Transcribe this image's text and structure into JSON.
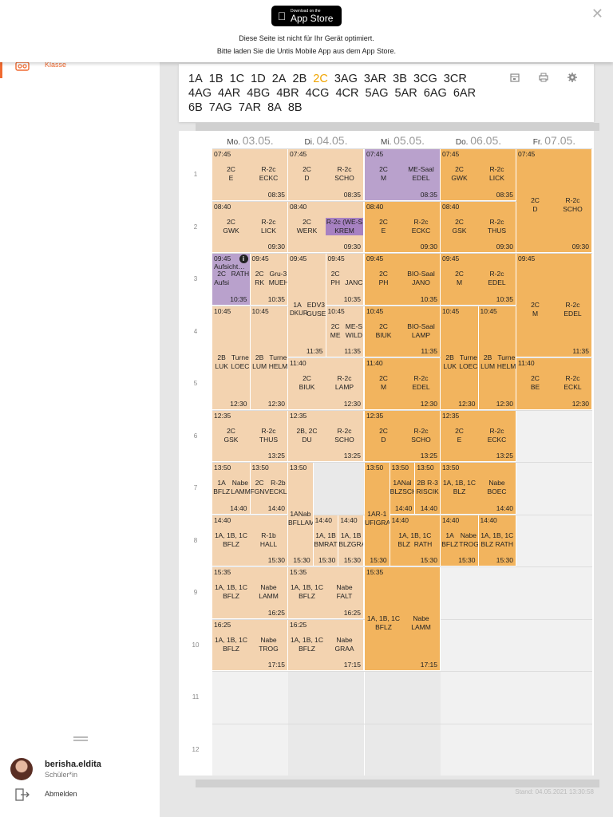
{
  "banner": {
    "appstore_small": "Download on the",
    "appstore_big": "App Store",
    "line1": "Diese Seite ist nicht für Ihr Gerät optimiert.",
    "line2": "Bitte laden Sie die Untis Mobile App aus dem App Store.",
    "close": "✕"
  },
  "sidebar": {
    "nav_label": "Klasse",
    "user": "berisha.eldita",
    "role": "Schüler*in",
    "logout": "Abmelden"
  },
  "classes": {
    "items": [
      "1A",
      "1B",
      "1C",
      "1D",
      "2A",
      "2B",
      "2C",
      "3AG",
      "3AR",
      "3B",
      "3CG",
      "3CR",
      "4AG",
      "4AR",
      "4BG",
      "4BR",
      "4CG",
      "4CR",
      "5AG",
      "5AR",
      "6AG",
      "6AR",
      "6B",
      "7AG",
      "7AR",
      "8A",
      "8B"
    ],
    "active": "2C"
  },
  "timetable": {
    "days": [
      {
        "name": "Mo.",
        "date": "03.05."
      },
      {
        "name": "Di.",
        "date": "04.05."
      },
      {
        "name": "Mi.",
        "date": "05.05."
      },
      {
        "name": "Do.",
        "date": "06.05."
      },
      {
        "name": "Fr.",
        "date": "07.05."
      }
    ],
    "periods": [
      "1",
      "2",
      "3",
      "4",
      "5",
      "6",
      "7",
      "8",
      "9",
      "10",
      "11",
      "12"
    ],
    "stand": "Stand: 04.05.2021 13:30:58",
    "lessons": [
      {
        "day": 0,
        "p": 0,
        "span": 1,
        "sub": 0,
        "of": 1,
        "c": "light",
        "st": "07:45",
        "a": "2C\nE",
        "b": "R-2c\nECKC",
        "et": "08:35"
      },
      {
        "day": 0,
        "p": 1,
        "span": 1,
        "sub": 0,
        "of": 1,
        "c": "light",
        "st": "08:40",
        "a": "2C\nGWK",
        "b": "R-2c\nLICK",
        "et": "09:30"
      },
      {
        "day": 0,
        "p": 2,
        "span": 1,
        "sub": 0,
        "of": 2,
        "c": "purple",
        "st": "09:45\nAufsicht…",
        "a": "2C\nAufsi",
        "b": "RATH",
        "et": "10:35",
        "info": true
      },
      {
        "day": 0,
        "p": 2,
        "span": 1,
        "sub": 1,
        "of": 2,
        "c": "light",
        "st": "09:45",
        "a": "2C\nRK",
        "b": "Gru-3\nMUEH",
        "et": "10:35"
      },
      {
        "day": 0,
        "p": 3,
        "span": 2,
        "sub": 0,
        "of": 2,
        "c": "light",
        "st": "10:45",
        "a": "2B\nLUK",
        "b": "Turne\nLOEC",
        "et": "12:30"
      },
      {
        "day": 0,
        "p": 3,
        "span": 2,
        "sub": 1,
        "of": 2,
        "c": "light",
        "st": "10:45",
        "a": "2B\nLUM",
        "b": "Turne\nHELM",
        "et": "12:30"
      },
      {
        "day": 0,
        "p": 5,
        "span": 1,
        "sub": 0,
        "of": 1,
        "c": "light",
        "st": "12:35",
        "a": "2C\nGSK",
        "b": "R-2c\nTHUS",
        "et": "13:25"
      },
      {
        "day": 0,
        "p": 6,
        "span": 1,
        "sub": 0,
        "of": 2,
        "c": "light",
        "st": "13:50",
        "a": "1A\nBFLZ",
        "b": "Nabe\nLAMM",
        "et": "14:40"
      },
      {
        "day": 0,
        "p": 6,
        "span": 1,
        "sub": 1,
        "of": 2,
        "c": "light",
        "st": "13:50",
        "a": "2C\nFGNV",
        "b": "R-2b\nECKL",
        "et": "14:40"
      },
      {
        "day": 0,
        "p": 7,
        "span": 1,
        "sub": 0,
        "of": 1,
        "c": "light",
        "st": "14:40",
        "a": "1A, 1B, 1C\nBFLZ",
        "b": "R-1b\nHALL",
        "et": "15:30"
      },
      {
        "day": 0,
        "p": 8,
        "span": 1,
        "sub": 0,
        "of": 1,
        "c": "light",
        "st": "15:35",
        "a": "1A, 1B, 1C\nBFLZ",
        "b": "Nabe\nLAMM",
        "et": "16:25"
      },
      {
        "day": 0,
        "p": 9,
        "span": 1,
        "sub": 0,
        "of": 1,
        "c": "light",
        "st": "16:25",
        "a": "1A, 1B, 1C\nBFLZ",
        "b": "Nabe\nTROG",
        "et": "17:15"
      },
      {
        "day": 1,
        "p": 0,
        "span": 1,
        "sub": 0,
        "of": 1,
        "c": "light",
        "st": "07:45",
        "a": "2C\nD",
        "b": "R-2c\nSCHO",
        "et": "08:35"
      },
      {
        "day": 1,
        "p": 1,
        "span": 1,
        "sub": 0,
        "of": 1,
        "c": "light",
        "st": "08:40",
        "a": "2C\nWERK",
        "b": "R-2c (WE-S\nKREM",
        "et": "09:30",
        "tagb": true
      },
      {
        "day": 1,
        "p": 2,
        "span": 2,
        "sub": 0,
        "of": 2,
        "c": "light",
        "st": "09:45",
        "a": "1A",
        "b": "EDV3\nGUSE",
        "et": "11:35",
        "aAlt": "DKUR"
      },
      {
        "day": 1,
        "p": 2,
        "span": 1,
        "sub": 1,
        "of": 2,
        "c": "light",
        "st": "09:45",
        "a": "2C\nPH",
        "b": "\nJANC",
        "et": "10:35"
      },
      {
        "day": 1,
        "p": 3,
        "span": 1,
        "sub": 1,
        "of": 2,
        "c": "light",
        "st": "10:45",
        "a": "2C\nME",
        "b": "ME-S\nWILD",
        "et": "11:35"
      },
      {
        "day": 1,
        "p": 4,
        "span": 1,
        "sub": 0,
        "of": 1,
        "c": "light",
        "st": "11:40",
        "a": "2C\nBIUK",
        "b": "R-2c\nLAMP",
        "et": "12:30"
      },
      {
        "day": 1,
        "p": 5,
        "span": 1,
        "sub": 0,
        "of": 1,
        "c": "light",
        "st": "12:35",
        "a": "2B, 2C\nDU",
        "b": "R-2c\nSCHO",
        "et": "13:25"
      },
      {
        "day": 1,
        "p": 6,
        "span": 2,
        "sub": 0,
        "of": 3,
        "c": "light",
        "st": "13:50",
        "a": "1ANab\nBFLLAM",
        "b": "",
        "et": "15:30"
      },
      {
        "day": 1,
        "p": 7,
        "span": 1,
        "sub": 1,
        "of": 3,
        "c": "light",
        "st": "14:40",
        "a": "1A, 1B\nBMRAT",
        "b": "",
        "et": "15:30"
      },
      {
        "day": 1,
        "p": 7,
        "span": 1,
        "sub": 2,
        "of": 3,
        "c": "light",
        "st": "14:40",
        "a": "1A, 1B\nBLZGRA",
        "b": "",
        "et": "15:30"
      },
      {
        "day": 1,
        "p": 8,
        "span": 1,
        "sub": 0,
        "of": 1,
        "c": "light",
        "st": "15:35",
        "a": "1A, 1B, 1C\nBFLZ",
        "b": "Nabe\nFALT",
        "et": "16:25"
      },
      {
        "day": 1,
        "p": 9,
        "span": 1,
        "sub": 0,
        "of": 1,
        "c": "light",
        "st": "16:25",
        "a": "1A, 1B, 1C\nBFLZ",
        "b": "Nabe\nGRAA",
        "et": "17:15"
      },
      {
        "day": 2,
        "p": 0,
        "span": 1,
        "sub": 0,
        "of": 1,
        "c": "purple",
        "st": "07:45",
        "a": "2C\nM",
        "b": "ME-Saal\nEDEL",
        "et": "08:35"
      },
      {
        "day": 2,
        "p": 1,
        "span": 1,
        "sub": 0,
        "of": 1,
        "c": "orange",
        "st": "08:40",
        "a": "2C\nE",
        "b": "R-2c\nECKC",
        "et": "09:30"
      },
      {
        "day": 2,
        "p": 2,
        "span": 1,
        "sub": 0,
        "of": 1,
        "c": "orange",
        "st": "09:45",
        "a": "2C\nPH",
        "b": "BIO-Saal\nJANO",
        "et": "10:35"
      },
      {
        "day": 2,
        "p": 3,
        "span": 1,
        "sub": 0,
        "of": 1,
        "c": "orange",
        "st": "10:45",
        "a": "2C\nBIUK",
        "b": "BIO-Saal\nLAMP",
        "et": "11:35"
      },
      {
        "day": 2,
        "p": 4,
        "span": 1,
        "sub": 0,
        "of": 1,
        "c": "orange",
        "st": "11:40",
        "a": "2C\nM",
        "b": "R-2c\nEDEL",
        "et": "12:30"
      },
      {
        "day": 2,
        "p": 5,
        "span": 1,
        "sub": 0,
        "of": 1,
        "c": "orange",
        "st": "12:35",
        "a": "2C\nD",
        "b": "R-2c\nSCHO",
        "et": "13:25"
      },
      {
        "day": 2,
        "p": 6,
        "span": 2,
        "sub": 0,
        "of": 3,
        "c": "orange",
        "st": "13:50",
        "a": "1AR-1\nUFIGRA",
        "b": "",
        "et": "15:30"
      },
      {
        "day": 2,
        "p": 6,
        "span": 1,
        "sub": 1,
        "of": 3,
        "c": "orange",
        "st": "13:50",
        "a": "1ANal\nBLZSCH",
        "b": "",
        "et": "14:40"
      },
      {
        "day": 2,
        "p": 6,
        "span": 1,
        "sub": 2,
        "of": 3,
        "c": "orange",
        "st": "13:50",
        "a": "2B R-3\nRISCIK",
        "b": "",
        "et": "14:40"
      },
      {
        "day": 2,
        "p": 7,
        "span": 1,
        "sub": 1,
        "of": 3,
        "c": "orange",
        "st": "14:40",
        "a": "1A, 1B, 1C\nBLZ  RATH",
        "b": "",
        "et": "15:30",
        "wide": true
      },
      {
        "day": 2,
        "p": 8,
        "span": 2,
        "sub": 0,
        "of": 1,
        "c": "orange",
        "st": "15:35",
        "a": "1A, 1B, 1C\nBFLZ",
        "b": "Nabe\nLAMM",
        "et": "17:15"
      },
      {
        "day": 3,
        "p": 0,
        "span": 1,
        "sub": 0,
        "of": 1,
        "c": "orange",
        "st": "07:45",
        "a": "2C\nGWK",
        "b": "R-2c\nLICK",
        "et": "08:35"
      },
      {
        "day": 3,
        "p": 1,
        "span": 1,
        "sub": 0,
        "of": 1,
        "c": "orange",
        "st": "08:40",
        "a": "2C\nGSK",
        "b": "R-2c\nTHUS",
        "et": "09:30"
      },
      {
        "day": 3,
        "p": 2,
        "span": 1,
        "sub": 0,
        "of": 1,
        "c": "orange",
        "st": "09:45",
        "a": "2C\nM",
        "b": "R-2c\nEDEL",
        "et": "10:35"
      },
      {
        "day": 3,
        "p": 3,
        "span": 2,
        "sub": 0,
        "of": 2,
        "c": "orange",
        "st": "10:45",
        "a": "2B\nLUK",
        "b": "Turne\nLOEC",
        "et": "12:30"
      },
      {
        "day": 3,
        "p": 3,
        "span": 2,
        "sub": 1,
        "of": 2,
        "c": "orange",
        "st": "10:45",
        "a": "2B\nLUM",
        "b": "Turne\nHELM",
        "et": "12:30"
      },
      {
        "day": 3,
        "p": 5,
        "span": 1,
        "sub": 0,
        "of": 1,
        "c": "orange",
        "st": "12:35",
        "a": "2C\nE",
        "b": "R-2c\nECKC",
        "et": "13:25"
      },
      {
        "day": 3,
        "p": 6,
        "span": 1,
        "sub": 0,
        "of": 1,
        "c": "orange",
        "st": "13:50",
        "a": "1A, 1B, 1C\nBLZ",
        "b": "Nabe\nBOEC",
        "et": "14:40"
      },
      {
        "day": 3,
        "p": 7,
        "span": 1,
        "sub": 0,
        "of": 2,
        "c": "orange",
        "st": "14:40",
        "a": "1A\nBFLZ",
        "b": "Nabe\nTROG",
        "et": "15:30"
      },
      {
        "day": 3,
        "p": 7,
        "span": 1,
        "sub": 1,
        "of": 2,
        "c": "orange",
        "st": "14:40",
        "a": "1A, 1B, 1C\nBLZ RATH",
        "b": "",
        "et": "15:30"
      },
      {
        "day": 4,
        "p": 0,
        "span": 2,
        "sub": 0,
        "of": 1,
        "c": "orange",
        "st": "07:45",
        "a": "2C\nD",
        "b": "R-2c\nSCHO",
        "et": "09:30"
      },
      {
        "day": 4,
        "p": 2,
        "span": 2,
        "sub": 0,
        "of": 1,
        "c": "orange",
        "st": "09:45",
        "a": "2C\nM",
        "b": "R-2c\nEDEL",
        "et": "11:35"
      },
      {
        "day": 4,
        "p": 4,
        "span": 1,
        "sub": 0,
        "of": 1,
        "c": "orange",
        "st": "11:40",
        "a": "2C\nBE",
        "b": "R-2c\nECKL",
        "et": "12:30"
      }
    ]
  },
  "colors": {
    "accent": "#f06a30",
    "active_class": "#f0a500",
    "light": "#f3d3b0",
    "orange": "#f2b45e",
    "purple": "#b9a1cc"
  }
}
